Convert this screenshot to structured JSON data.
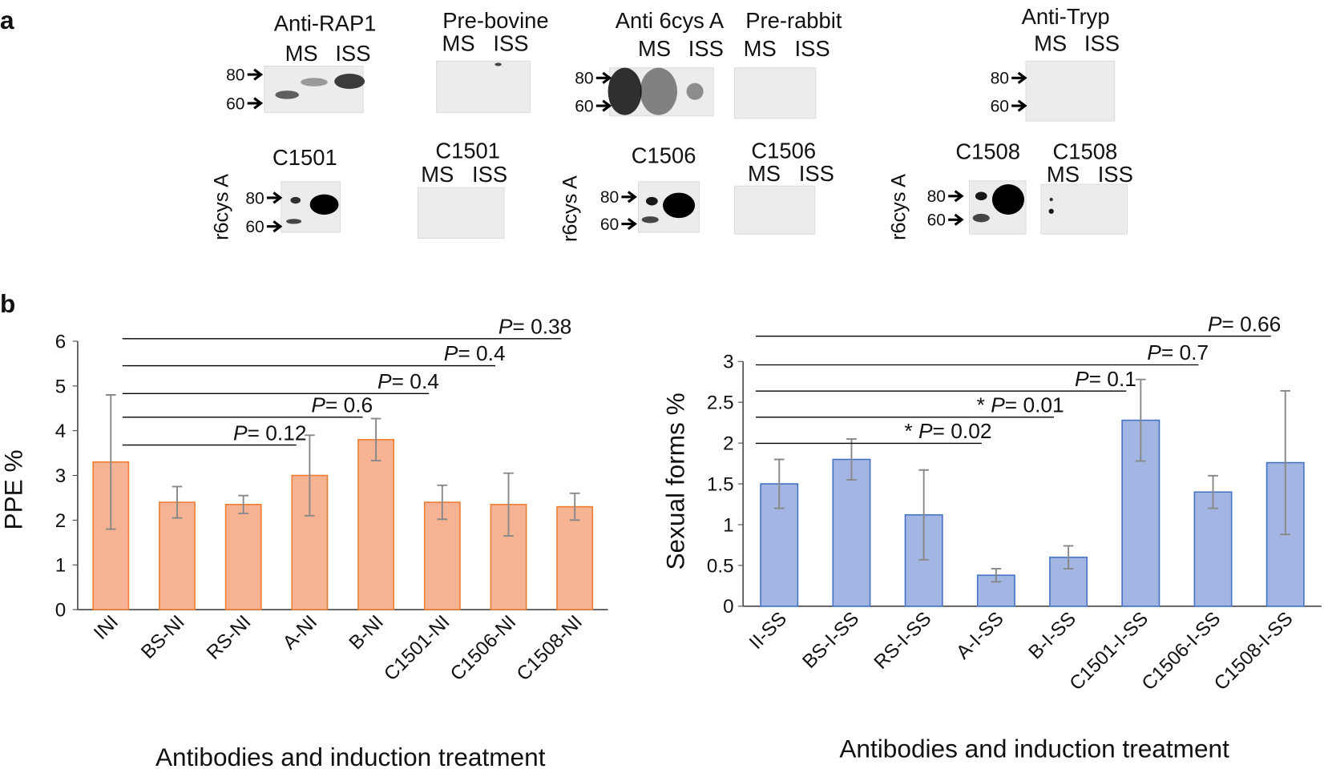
{
  "panel_labels": [
    "a",
    "b"
  ],
  "blots": [
    {
      "title": "Anti-RAP1",
      "lanes": [
        "MS",
        "ISS"
      ],
      "markers": [
        80,
        60
      ]
    },
    {
      "title": "Pre-bovine",
      "lanes": [
        "MS",
        "ISS"
      ]
    },
    {
      "title": "Anti 6cys A",
      "lanes": [
        "MS",
        "ISS"
      ],
      "markers": [
        80,
        60
      ]
    },
    {
      "title": "Pre-rabbit",
      "lanes": [
        "MS",
        "ISS"
      ]
    },
    {
      "title": "Anti-Tryp",
      "lanes": [
        "MS",
        "ISS"
      ],
      "markers": [
        80,
        60
      ]
    },
    {
      "title": "C1501",
      "side_label": "r6cys A",
      "markers": [
        80,
        60
      ]
    },
    {
      "title": "C1501",
      "lanes": [
        "MS",
        "ISS"
      ]
    },
    {
      "title": "C1506",
      "side_label": "r6cys A",
      "markers": [
        80,
        60
      ]
    },
    {
      "title": "C1506",
      "lanes": [
        "MS",
        "ISS"
      ]
    },
    {
      "title": "C1508",
      "side_label": "r6cys A",
      "markers": [
        80,
        60
      ]
    },
    {
      "title": "C1508",
      "lanes": [
        "MS",
        "ISS"
      ]
    }
  ],
  "chart_data": [
    {
      "type": "bar",
      "ylabel": "PPE %",
      "xlabel": "Antibodies and induction treatment",
      "categories": [
        "INI",
        "BS-NI",
        "RS-NI",
        "A-NI",
        "B-NI",
        "C1501-NI",
        "C1506-NI",
        "C1508-NI"
      ],
      "values": [
        3.3,
        2.4,
        2.35,
        3.0,
        3.8,
        2.4,
        2.35,
        2.3
      ],
      "errors": [
        1.5,
        0.35,
        0.2,
        0.9,
        0.47,
        0.38,
        0.7,
        0.3
      ],
      "color": "#f5b394",
      "edge_color": "#ed7d31",
      "ylim": [
        0,
        6
      ],
      "yticks": [
        0,
        1,
        2,
        3,
        4,
        5,
        6
      ],
      "annotations": [
        {
          "text": "P= 0.12",
          "from": 0,
          "to": 3
        },
        {
          "text": "P= 0.6",
          "from": 0,
          "to": 4
        },
        {
          "text": "P= 0.4",
          "from": 0,
          "to": 5
        },
        {
          "text": "P= 0.4",
          "from": 0,
          "to": 6
        },
        {
          "text": "P= 0.38",
          "from": 0,
          "to": 7
        }
      ]
    },
    {
      "type": "bar",
      "ylabel": "Sexual forms %",
      "xlabel": "Antibodies and induction treatment",
      "categories": [
        "II-SS",
        "BS-I-SS",
        "RS-I-SS",
        "A-I-SS",
        "B-I-SS",
        "C1501-I-SS",
        "C1506-I-SS",
        "C1508-I-SS"
      ],
      "values": [
        1.5,
        1.8,
        1.12,
        0.38,
        0.6,
        2.28,
        1.4,
        1.76
      ],
      "errors": [
        0.3,
        0.25,
        0.55,
        0.08,
        0.14,
        0.5,
        0.2,
        0.88
      ],
      "color": "#a3b5e2",
      "edge_color": "#4472c4",
      "ylim": [
        0,
        3
      ],
      "yticks": [
        0,
        0.5,
        1,
        1.5,
        2,
        2.5,
        3
      ],
      "annotations": [
        {
          "text": "* P= 0.02",
          "from": 0,
          "to": 3
        },
        {
          "text": "* P= 0.01",
          "from": 0,
          "to": 4
        },
        {
          "text": "P= 0.1",
          "from": 0,
          "to": 5
        },
        {
          "text": "P= 0.7",
          "from": 0,
          "to": 6
        },
        {
          "text": "P= 0.66",
          "from": 0,
          "to": 7
        }
      ]
    }
  ]
}
